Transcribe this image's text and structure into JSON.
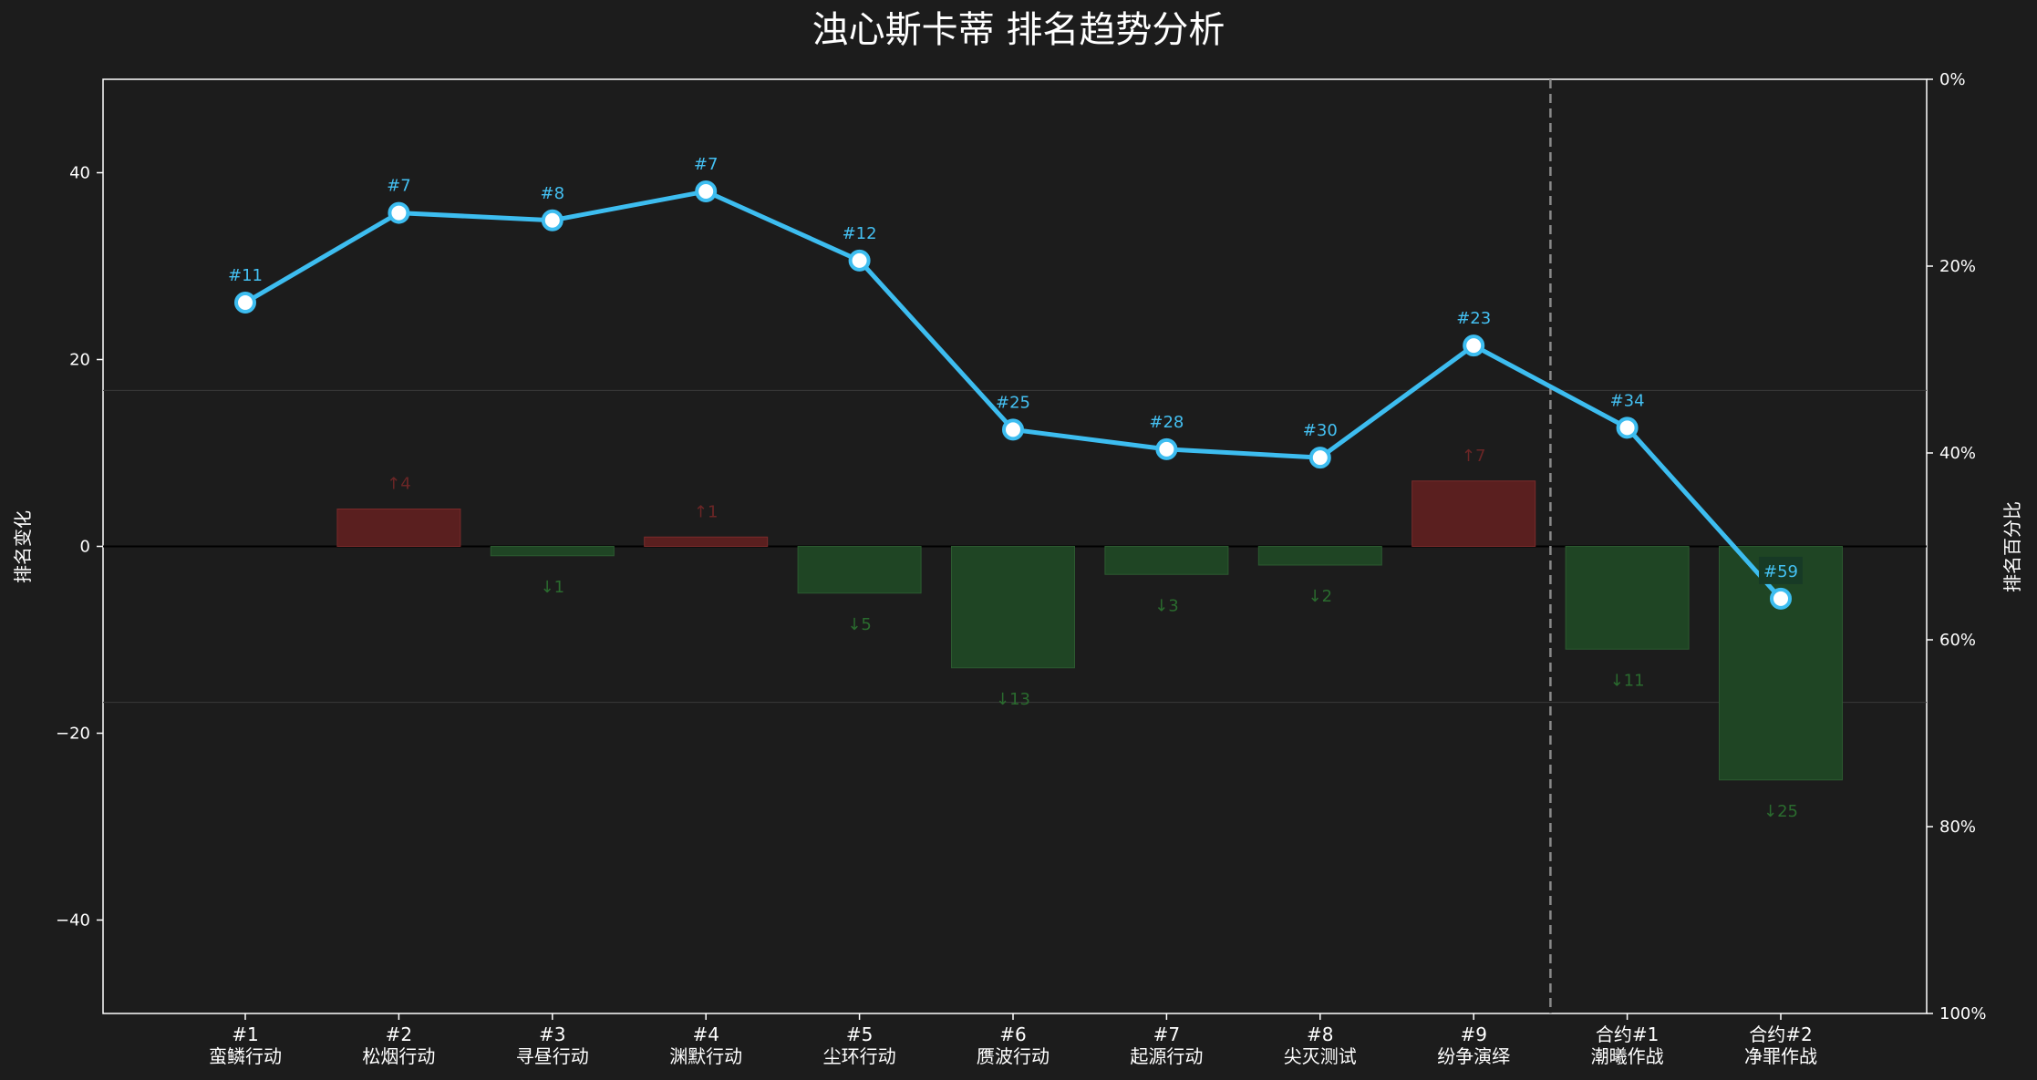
{
  "chart_data": {
    "type": "bar+line",
    "title": "浊心斯卡蒂 排名趋势分析",
    "ylabel": "排名变化",
    "y2label": "排名百分比",
    "ylim": [
      -50,
      50
    ],
    "y_ticks": [
      "40",
      "20",
      "0",
      "−20",
      "−40"
    ],
    "y_tick_values": [
      40,
      20,
      0,
      -20,
      -40
    ],
    "y2lim": [
      0,
      100
    ],
    "y2_ticks": [
      "0%",
      "20%",
      "40%",
      "60%",
      "80%",
      "100%"
    ],
    "y2_tick_values": [
      0,
      20,
      40,
      60,
      80,
      100
    ],
    "categories": [
      [
        "#1",
        "蛮鳞行动"
      ],
      [
        "#2",
        "松烟行动"
      ],
      [
        "#3",
        "寻昼行动"
      ],
      [
        "#4",
        "渊默行动"
      ],
      [
        "#5",
        "尘环行动"
      ],
      [
        "#6",
        "赝波行动"
      ],
      [
        "#7",
        "起源行动"
      ],
      [
        "#8",
        "尖灭测试"
      ],
      [
        "#9",
        "纷争演绎"
      ],
      [
        "合约#1",
        "潮曦作战"
      ],
      [
        "合约#2",
        "净罪作战"
      ]
    ],
    "rank_change": [
      0,
      4,
      -1,
      1,
      -5,
      -13,
      -3,
      -2,
      7,
      -11,
      -25
    ],
    "change_labels": [
      "",
      "↑4",
      "↓1",
      "↑1",
      "↓5",
      "↓13",
      "↓3",
      "↓2",
      "↑7",
      "↓11",
      "↓25"
    ],
    "rank_percentile": [
      23.9,
      14.3,
      15.1,
      12.0,
      19.4,
      37.5,
      39.6,
      40.5,
      28.5,
      37.3,
      55.6
    ],
    "rank_labels": [
      "#11",
      "#7",
      "#8",
      "#7",
      "#12",
      "#25",
      "#28",
      "#30",
      "#23",
      "#34",
      "#59"
    ],
    "reference_lines": [
      16.7,
      -16.7
    ],
    "divider_after_index": 8,
    "colors": {
      "background": "#1c1c1c",
      "line": "#3dbdf0",
      "up_bar": "#5a1f1f",
      "up_text": "#6b2626",
      "down_bar": "#1f4524",
      "down_text": "#2a6b2e",
      "rank_text": "#44c0f2"
    }
  }
}
